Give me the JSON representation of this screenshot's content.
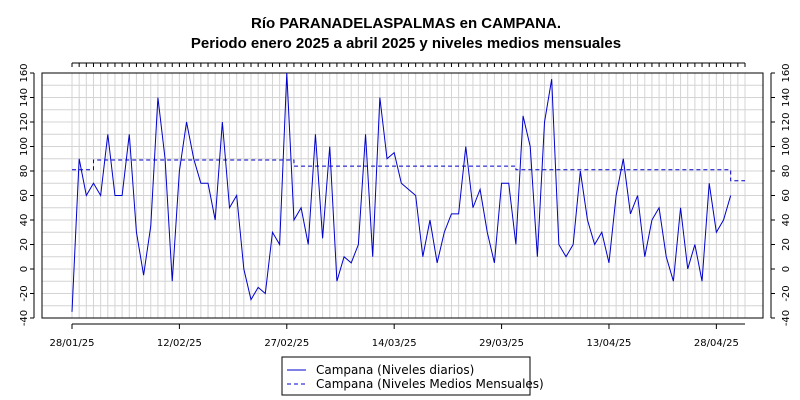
{
  "chart_data": {
    "type": "line",
    "title_line1": "Río PARANADELASPALMAS en CAMPANA.",
    "title_line2": "Periodo enero 2025 a abril 2025 y niveles medios mensuales",
    "xlabel": "",
    "ylabel": "",
    "x_start": "28/01/25",
    "x_end": "02/05/25",
    "x_ticks": [
      "28/01/25",
      "12/02/25",
      "27/02/25",
      "14/03/25",
      "29/03/25",
      "13/04/25",
      "28/04/25"
    ],
    "ylim": [
      -40,
      160
    ],
    "y_ticks": [
      -40,
      -20,
      0,
      20,
      40,
      60,
      80,
      100,
      120,
      140,
      160
    ],
    "grid": true,
    "series": [
      {
        "name": "Campana (Niveles diarios)",
        "color": "#0000cc",
        "style": "solid",
        "x": [
          "28/01/25",
          "29/01/25",
          "30/01/25",
          "31/01/25",
          "01/02/25",
          "02/02/25",
          "03/02/25",
          "04/02/25",
          "05/02/25",
          "06/02/25",
          "07/02/25",
          "08/02/25",
          "09/02/25",
          "10/02/25",
          "11/02/25",
          "12/02/25",
          "13/02/25",
          "14/02/25",
          "15/02/25",
          "16/02/25",
          "17/02/25",
          "18/02/25",
          "19/02/25",
          "20/02/25",
          "21/02/25",
          "22/02/25",
          "23/02/25",
          "24/02/25",
          "25/02/25",
          "26/02/25",
          "27/02/25",
          "28/02/25",
          "01/03/25",
          "02/03/25",
          "03/03/25",
          "04/03/25",
          "05/03/25",
          "06/03/25",
          "07/03/25",
          "08/03/25",
          "09/03/25",
          "10/03/25",
          "11/03/25",
          "12/03/25",
          "13/03/25",
          "14/03/25",
          "15/03/25",
          "16/03/25",
          "17/03/25",
          "18/03/25",
          "19/03/25",
          "20/03/25",
          "21/03/25",
          "22/03/25",
          "23/03/25",
          "24/03/25",
          "25/03/25",
          "26/03/25",
          "27/03/25",
          "28/03/25",
          "29/03/25",
          "30/03/25",
          "31/03/25",
          "01/04/25",
          "02/04/25",
          "03/04/25",
          "04/04/25",
          "05/04/25",
          "06/04/25",
          "07/04/25",
          "08/04/25",
          "09/04/25",
          "10/04/25",
          "11/04/25",
          "12/04/25",
          "13/04/25",
          "14/04/25",
          "15/04/25",
          "16/04/25",
          "17/04/25",
          "18/04/25",
          "19/04/25",
          "20/04/25",
          "21/04/25",
          "22/04/25",
          "23/04/25",
          "24/04/25",
          "25/04/25",
          "26/04/25",
          "27/04/25",
          "28/04/25",
          "29/04/25",
          "30/04/25"
        ],
        "y": [
          -35,
          90,
          60,
          70,
          60,
          110,
          60,
          60,
          110,
          30,
          -5,
          35,
          140,
          90,
          -10,
          80,
          120,
          90,
          70,
          70,
          40,
          120,
          50,
          60,
          0,
          -25,
          -15,
          -20,
          30,
          20,
          160,
          40,
          50,
          20,
          110,
          25,
          100,
          -10,
          10,
          5,
          20,
          110,
          10,
          140,
          90,
          95,
          70,
          65,
          60,
          10,
          40,
          5,
          30,
          45,
          45,
          100,
          50,
          65,
          30,
          5,
          70,
          70,
          20,
          125,
          100,
          10,
          120,
          155,
          20,
          10,
          20,
          80,
          40,
          20,
          30,
          5,
          60,
          90,
          45,
          60,
          10,
          40,
          50,
          10,
          -10,
          50,
          0,
          20,
          -10,
          70,
          30,
          40,
          60
        ]
      },
      {
        "name": "Campana (Niveles Medios Mensuales)",
        "color": "#0000cc",
        "style": "dashed",
        "x": [
          "28/01/25",
          "31/01/25",
          "31/01/25",
          "28/02/25",
          "28/02/25",
          "31/03/25",
          "31/03/25",
          "30/04/25",
          "30/04/25",
          "02/05/25"
        ],
        "y": [
          81,
          81,
          89,
          89,
          84,
          84,
          81,
          81,
          72,
          72
        ]
      }
    ]
  }
}
